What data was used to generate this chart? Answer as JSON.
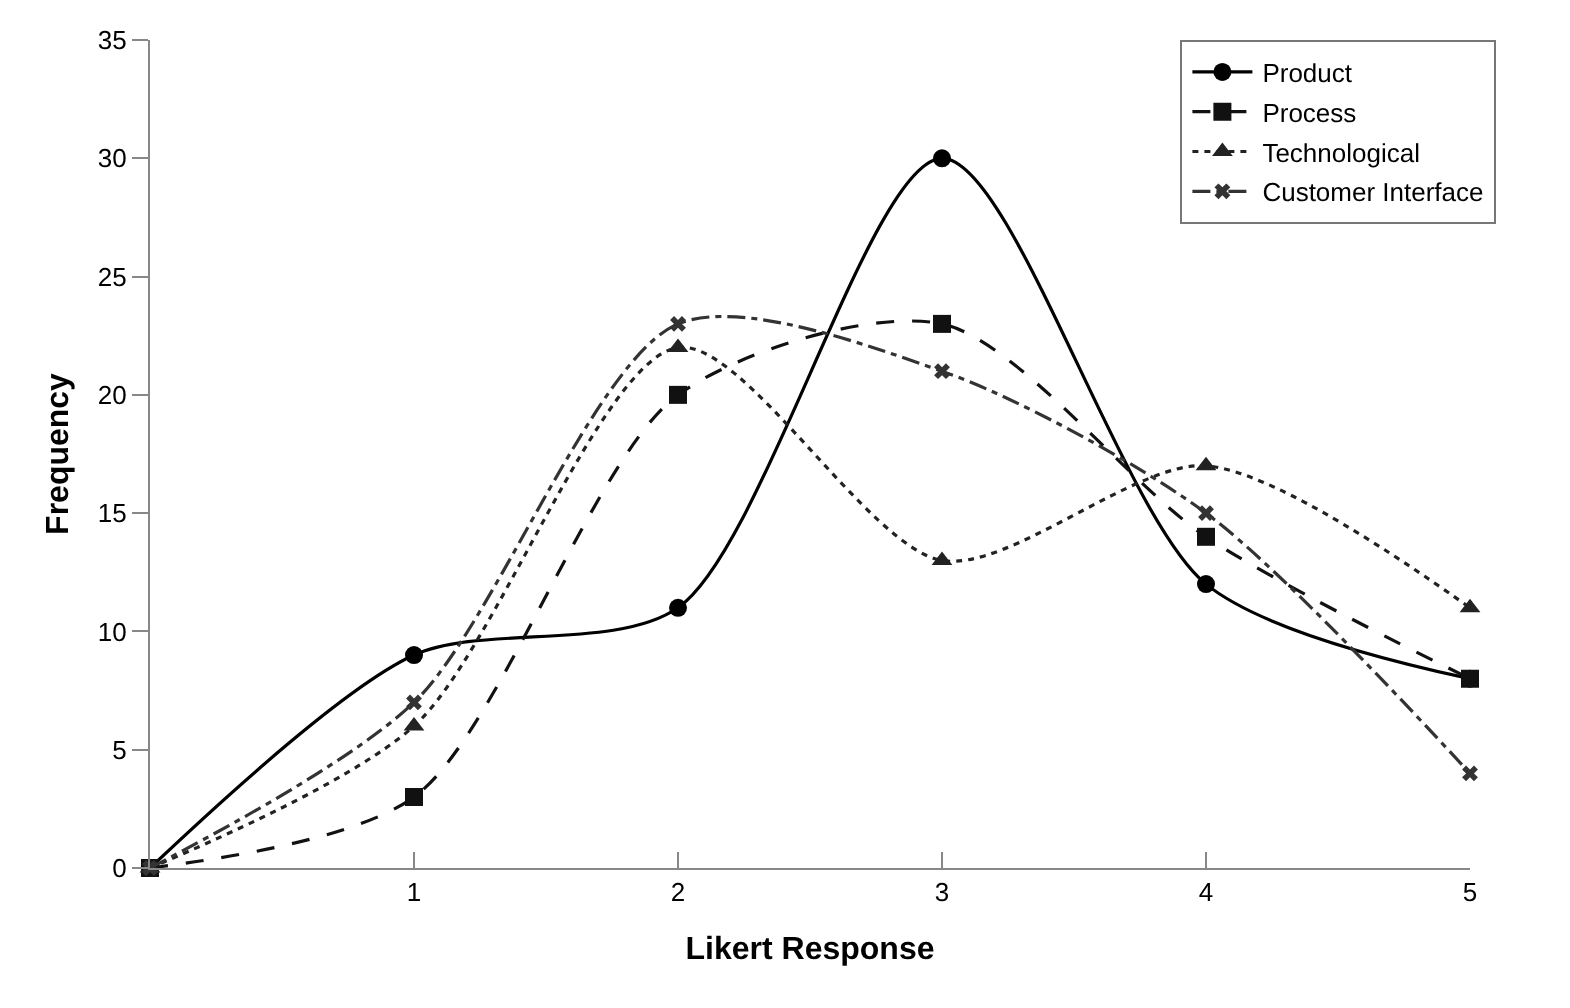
{
  "chart_data": {
    "type": "line",
    "xlabel": "Likert Response",
    "ylabel": "Frequency",
    "x": [
      0,
      1,
      2,
      3,
      4,
      5
    ],
    "xlim": [
      0,
      5
    ],
    "xticks": [
      1,
      2,
      3,
      4,
      5
    ],
    "ylim": [
      0,
      35
    ],
    "yticks": [
      0,
      5,
      10,
      15,
      20,
      25,
      30,
      35
    ],
    "grid": false,
    "legend": "top right",
    "series": [
      {
        "name": "Product",
        "color": "#000000",
        "marker": "circle",
        "line_style": "solid",
        "values": [
          0,
          9,
          11,
          30,
          12,
          8
        ]
      },
      {
        "name": "Process",
        "color": "#111111",
        "marker": "square",
        "line_style": "dashed",
        "values": [
          0,
          3,
          20,
          23,
          14,
          8
        ]
      },
      {
        "name": "Technological",
        "color": "#222222",
        "marker": "triangle",
        "line_style": "dotted",
        "values": [
          0,
          6,
          22,
          13,
          17,
          11
        ]
      },
      {
        "name": "Customer Interface",
        "color": "#333333",
        "marker": "cross",
        "line_style": "dashdot",
        "values": [
          0,
          7,
          23,
          21,
          15,
          4
        ]
      }
    ]
  }
}
